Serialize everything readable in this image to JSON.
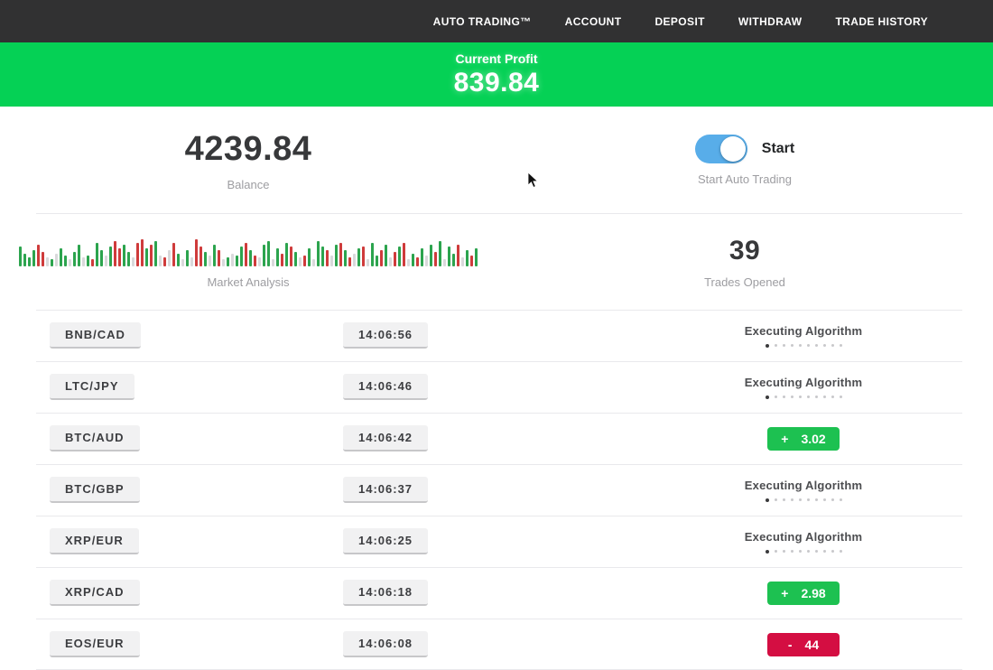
{
  "navbar": {
    "items": [
      {
        "label": "AUTO TRADING™"
      },
      {
        "label": "ACCOUNT"
      },
      {
        "label": "DEPOSIT"
      },
      {
        "label": "WITHDRAW"
      },
      {
        "label": "TRADE HISTORY"
      }
    ]
  },
  "banner": {
    "label": "Current Profit",
    "value": "839.84"
  },
  "balance": {
    "value": "4239.84",
    "label": "Balance"
  },
  "auto_trading": {
    "toggle_state": "on",
    "toggle_label": "Start",
    "sub_label": "Start Auto Trading"
  },
  "market_analysis": {
    "label": "Market Analysis",
    "bars": [
      "g22",
      "g14",
      "g10",
      "g18",
      "r24",
      "r16",
      "l10",
      "g8",
      "l14",
      "g20",
      "g12",
      "l8",
      "g16",
      "g24",
      "l10",
      "g12",
      "r8",
      "g26",
      "g18",
      "l12",
      "g22",
      "r28",
      "r20",
      "g24",
      "g16",
      "l10",
      "r26",
      "r30",
      "g20",
      "r24",
      "g28",
      "l12",
      "r10",
      "l18",
      "r26",
      "g14",
      "l8",
      "g18",
      "l10",
      "r30",
      "r22",
      "g16",
      "l12",
      "g24",
      "r18",
      "l8",
      "g10",
      "l14",
      "g12",
      "g22",
      "r26",
      "g18",
      "r12",
      "l10",
      "g24",
      "g28",
      "l8",
      "g20",
      "r14",
      "g26",
      "r22",
      "g16",
      "l10",
      "r12",
      "g20",
      "l8",
      "g28",
      "g22",
      "r18",
      "l12",
      "g24",
      "r26",
      "g18",
      "r10",
      "l14",
      "g20",
      "r22",
      "l8",
      "g26",
      "g12",
      "r18",
      "g24",
      "l10",
      "r16",
      "g22",
      "r26",
      "l8",
      "g14",
      "r10",
      "g20",
      "l12",
      "g24",
      "r16",
      "g28",
      "l8",
      "g22",
      "g14",
      "r24",
      "l10",
      "g18",
      "r12",
      "g20"
    ]
  },
  "trades_opened": {
    "value": "39",
    "label": "Trades Opened"
  },
  "trades": {
    "executing_label": "Executing Algorithm",
    "dots_total": 10,
    "dots_active": 1,
    "rows": [
      {
        "pair": "BNB/CAD",
        "time": "14:06:56",
        "status": {
          "type": "executing"
        }
      },
      {
        "pair": "LTC/JPY",
        "time": "14:06:46",
        "status": {
          "type": "executing"
        }
      },
      {
        "pair": "BTC/AUD",
        "time": "14:06:42",
        "status": {
          "type": "badge",
          "sign": "+",
          "value": "3.02",
          "color": "green"
        }
      },
      {
        "pair": "BTC/GBP",
        "time": "14:06:37",
        "status": {
          "type": "executing"
        }
      },
      {
        "pair": "XRP/EUR",
        "time": "14:06:25",
        "status": {
          "type": "executing"
        }
      },
      {
        "pair": "XRP/CAD",
        "time": "14:06:18",
        "status": {
          "type": "badge",
          "sign": "+",
          "value": "2.98",
          "color": "green"
        }
      },
      {
        "pair": "EOS/EUR",
        "time": "14:06:08",
        "status": {
          "type": "badge",
          "sign": "-",
          "value": "44",
          "color": "red"
        }
      }
    ]
  },
  "colors": {
    "banner_green": "#05d155",
    "badge_green": "#1dc151",
    "badge_red": "#d40e42",
    "toggle_blue": "#58ade9",
    "navbar_bg": "#313132",
    "bar_green": "#2ca44e",
    "bar_red": "#cf3b3b",
    "bar_grey": "#d9d9db"
  }
}
